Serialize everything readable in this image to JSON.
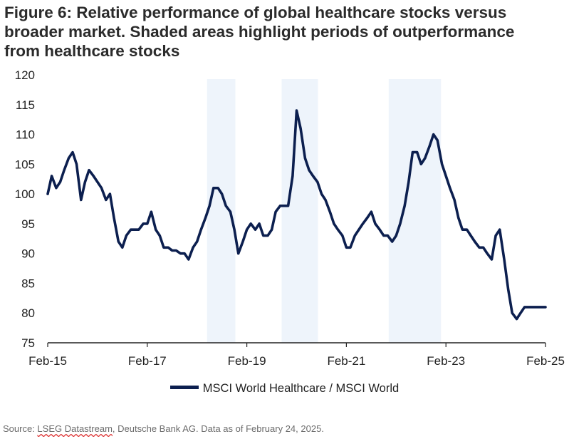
{
  "title": {
    "line1": "Figure 6: Relative performance of global healthcare stocks versus",
    "line2": "broader market. Shaded areas highlight periods of outperformance",
    "line3": "from healthcare stocks"
  },
  "source": {
    "prefix": "Source: ",
    "underlined": "LSEG Datastream",
    "rest": ", Deutsche Bank AG. Data as of February 24, 2025."
  },
  "colors": {
    "line": "#0c1f4f",
    "shade": "#eef4fb",
    "axis": "#222222"
  },
  "chart_data": {
    "type": "line",
    "title": "Figure 6: Relative performance of global healthcare stocks versus broader market. Shaded areas highlight periods of outperformance from healthcare stocks",
    "xlabel": "",
    "ylabel": "",
    "x_unit": "years since Feb-15",
    "xlim": [
      0,
      10
    ],
    "ylim": [
      75,
      120
    ],
    "y_ticks": [
      75,
      80,
      85,
      90,
      95,
      100,
      105,
      110,
      115,
      120
    ],
    "x_ticks": [
      {
        "value": 0,
        "label": "Feb-15"
      },
      {
        "value": 2,
        "label": "Feb-17"
      },
      {
        "value": 4,
        "label": "Feb-19"
      },
      {
        "value": 6,
        "label": "Feb-21"
      },
      {
        "value": 8,
        "label": "Feb-23"
      },
      {
        "value": 10,
        "label": "Feb-25"
      }
    ],
    "grid": false,
    "legend_position": "bottom",
    "shaded_periods": [
      [
        3.2,
        3.77
      ],
      [
        4.7,
        5.43
      ],
      [
        6.85,
        7.9
      ]
    ],
    "series": [
      {
        "name": "MSCI World Healthcare / MSCI World",
        "x": [
          0.0,
          0.08,
          0.17,
          0.25,
          0.33,
          0.42,
          0.5,
          0.58,
          0.67,
          0.75,
          0.83,
          0.92,
          1.0,
          1.08,
          1.17,
          1.25,
          1.33,
          1.42,
          1.5,
          1.58,
          1.67,
          1.75,
          1.83,
          1.92,
          2.0,
          2.08,
          2.17,
          2.25,
          2.33,
          2.42,
          2.5,
          2.58,
          2.67,
          2.75,
          2.83,
          2.92,
          3.0,
          3.08,
          3.17,
          3.25,
          3.33,
          3.42,
          3.5,
          3.58,
          3.67,
          3.75,
          3.83,
          3.92,
          4.0,
          4.08,
          4.17,
          4.25,
          4.33,
          4.42,
          4.5,
          4.58,
          4.67,
          4.75,
          4.83,
          4.92,
          5.0,
          5.08,
          5.17,
          5.25,
          5.33,
          5.42,
          5.5,
          5.58,
          5.67,
          5.75,
          5.83,
          5.92,
          6.0,
          6.08,
          6.17,
          6.25,
          6.33,
          6.42,
          6.5,
          6.58,
          6.67,
          6.75,
          6.83,
          6.92,
          7.0,
          7.08,
          7.17,
          7.25,
          7.33,
          7.42,
          7.5,
          7.58,
          7.67,
          7.75,
          7.83,
          7.92,
          8.0,
          8.08,
          8.17,
          8.25,
          8.33,
          8.42,
          8.5,
          8.58,
          8.67,
          8.75,
          8.83,
          8.92,
          9.0,
          9.08,
          9.17,
          9.25,
          9.33,
          9.42,
          9.5,
          9.58,
          9.67,
          9.75,
          9.83,
          9.92,
          10.0
        ],
        "values": [
          100,
          103,
          101,
          102,
          104,
          106,
          107,
          105,
          99,
          102,
          104,
          103,
          102,
          101,
          99,
          100,
          96,
          92,
          91,
          93,
          94,
          94,
          94,
          95,
          95,
          97,
          94,
          93,
          91,
          91,
          90.5,
          90.5,
          90,
          90,
          89,
          91,
          92,
          94,
          96,
          98,
          101,
          101,
          100,
          98,
          97,
          94,
          90,
          92,
          94,
          95,
          94,
          95,
          93,
          93,
          94,
          97,
          98,
          98,
          98,
          103,
          114,
          111,
          106,
          104,
          103,
          102,
          100,
          99,
          97,
          95,
          94,
          93,
          91,
          91,
          93,
          94,
          95,
          96,
          97,
          95,
          94,
          93,
          93,
          92,
          93,
          95,
          98,
          102,
          107,
          107,
          105,
          106,
          108,
          110,
          109,
          105,
          103,
          101,
          99,
          96,
          94,
          94,
          93,
          92,
          91,
          91,
          90,
          89,
          93,
          94,
          89,
          84,
          80,
          79,
          80,
          81,
          81,
          81,
          81,
          81,
          81
        ]
      }
    ]
  },
  "legend_label": "MSCI World Healthcare / MSCI World"
}
